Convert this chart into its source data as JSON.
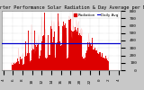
{
  "title": "Solar PV/Inverter Performance Solar Radiation & Day Average per Minute",
  "bg_color": "#c8c8c8",
  "plot_bg": "#ffffff",
  "bar_color": "#dd0000",
  "bar_edge_color": "#ff6666",
  "avg_line_color": "#0000cc",
  "avg_line_value": 360,
  "ymax": 800,
  "ytick_labels": [
    "800",
    "700",
    "600",
    "500",
    "400",
    "300",
    "200",
    "100",
    "  0"
  ],
  "ytick_values": [
    800,
    700,
    600,
    500,
    400,
    300,
    200,
    100,
    0
  ],
  "legend_label1": "Radiation",
  "legend_label2": "Daily Avg",
  "title_fontsize": 3.8,
  "tick_fontsize": 3.2,
  "legend_fontsize": 3.0
}
